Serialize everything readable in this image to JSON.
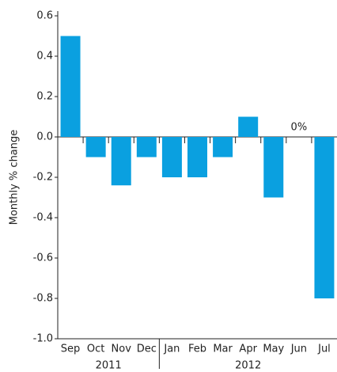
{
  "chart_data": {
    "type": "bar",
    "y_label": "Monthly % change",
    "categories": [
      "Sep",
      "Oct",
      "Nov",
      "Dec",
      "Jan",
      "Feb",
      "Mar",
      "Apr",
      "May",
      "Jun",
      "Jul"
    ],
    "groups": [
      "2011",
      "2012"
    ],
    "values": [
      0.5,
      -0.1,
      -0.24,
      -0.1,
      -0.2,
      -0.2,
      -0.1,
      0.1,
      -0.3,
      0,
      -0.8
    ],
    "value_labels": [
      null,
      null,
      null,
      null,
      null,
      null,
      null,
      null,
      null,
      "0%",
      null
    ],
    "color": "#0aa0e0",
    "ylim": [
      -1,
      0.6
    ],
    "yticks": [
      {
        "value": -1,
        "label": "-1.0"
      },
      -0.8,
      -0.6,
      -0.4,
      -0.2,
      {
        "value": 0,
        "label": "0.0"
      },
      0.2,
      0.4,
      0.6
    ],
    "grid": false
  }
}
